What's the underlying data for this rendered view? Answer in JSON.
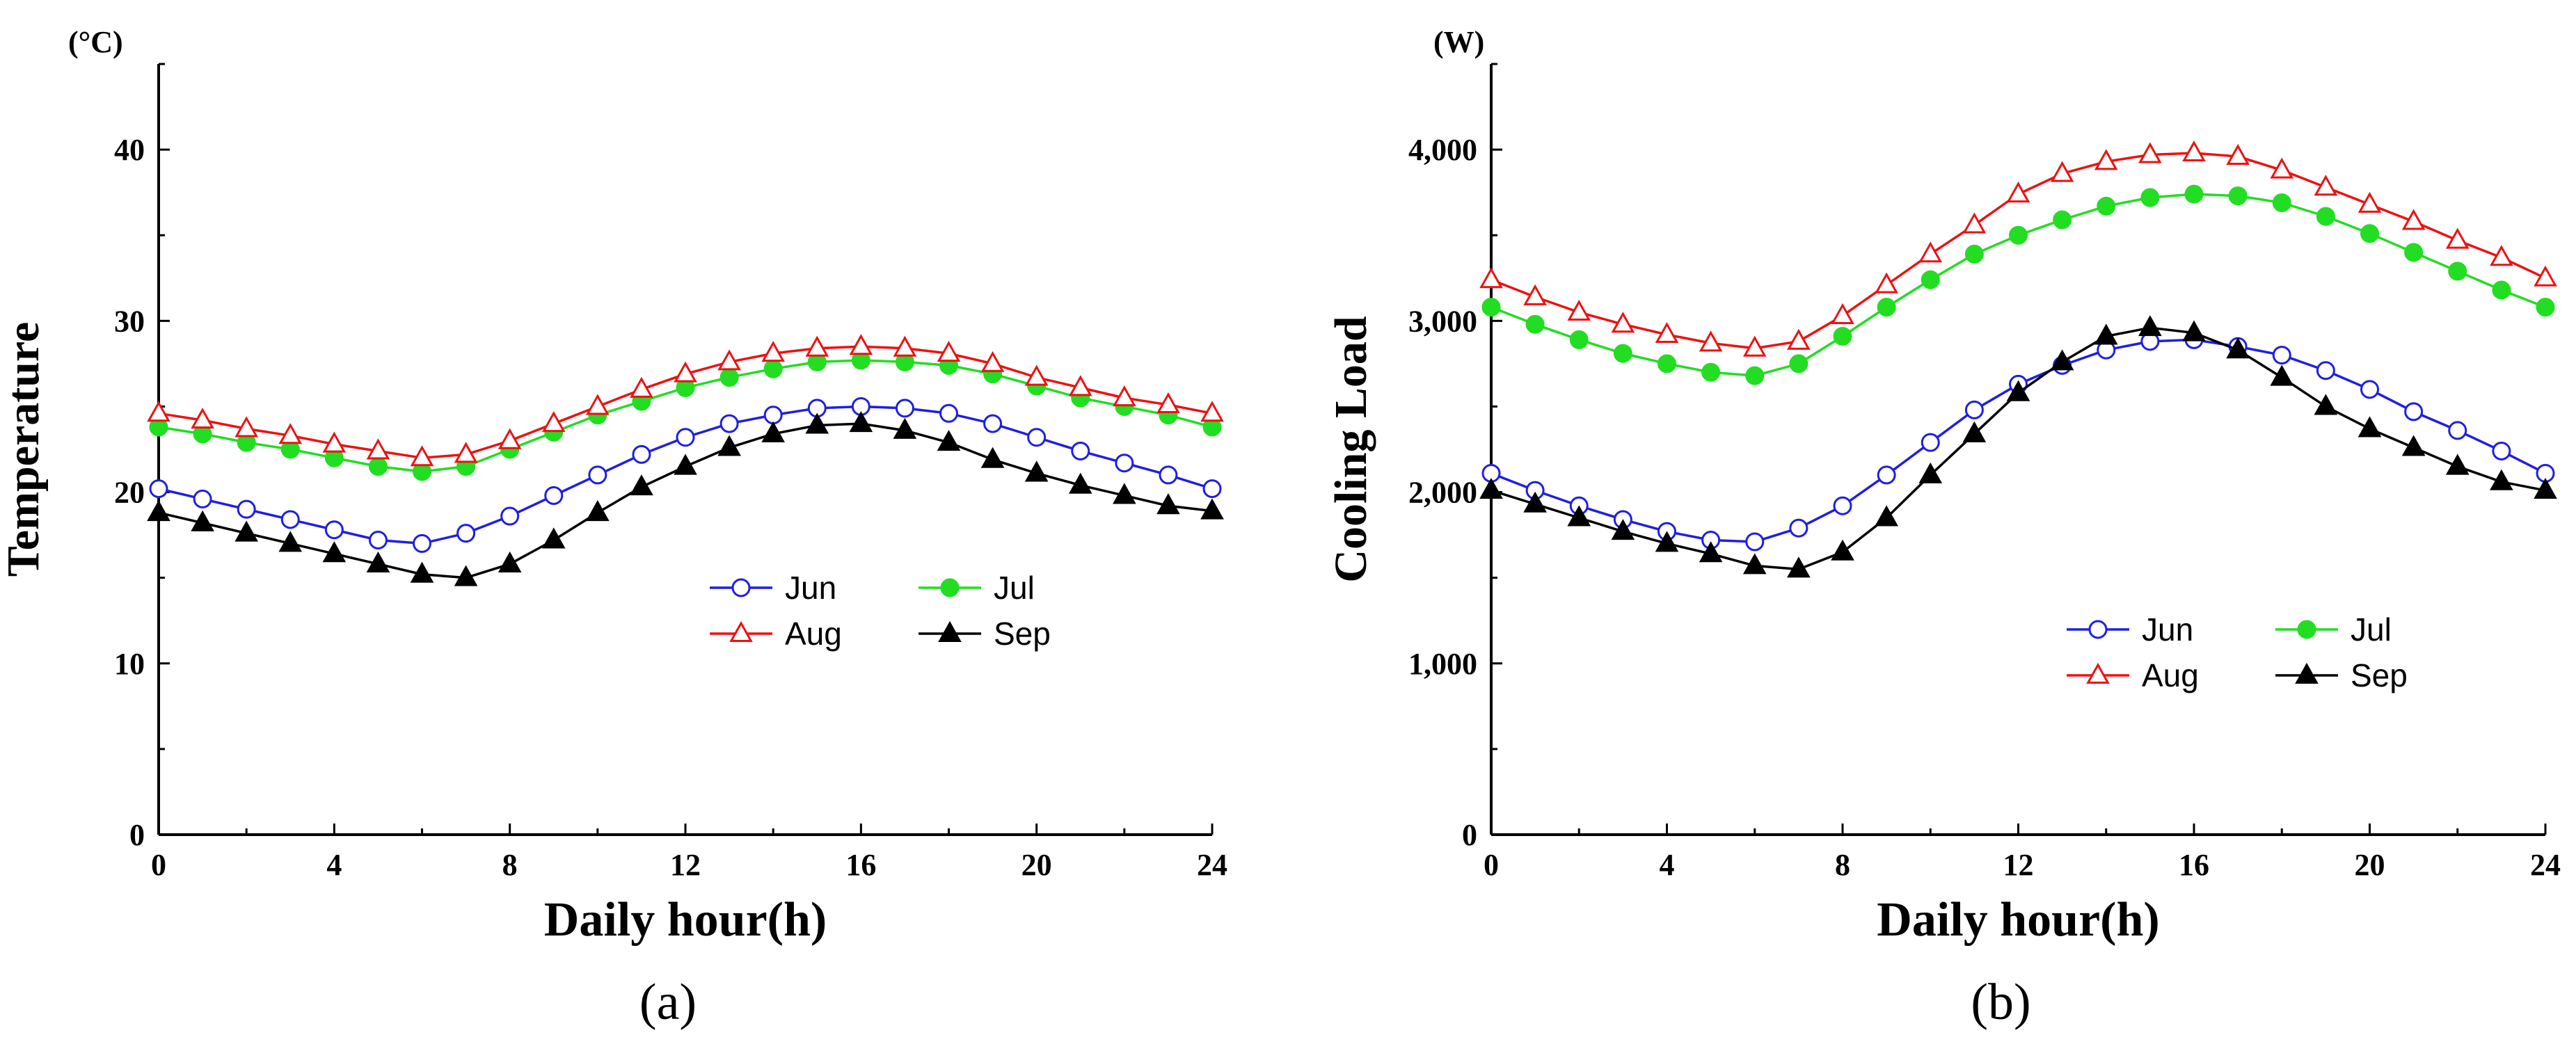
{
  "figure": {
    "panels": [
      {
        "panel_label": "(a)",
        "unit_label": "(°C)",
        "chart_data": {
          "type": "line",
          "title": "",
          "xlabel": "Daily hour(h)",
          "ylabel": "Temperature",
          "unit": "°C",
          "xlim": [
            0,
            24
          ],
          "ylim": [
            0,
            45
          ],
          "xticks": [
            0,
            4,
            8,
            12,
            16,
            20,
            24
          ],
          "xtick_labels": [
            "0",
            "4",
            "8",
            "12",
            "16",
            "20",
            "24"
          ],
          "yticks": [
            0,
            10,
            20,
            30,
            40
          ],
          "ytick_labels": [
            "0",
            "10",
            "20",
            "30",
            "40"
          ],
          "x": [
            0,
            1,
            2,
            3,
            4,
            5,
            6,
            7,
            8,
            9,
            10,
            11,
            12,
            13,
            14,
            15,
            16,
            17,
            18,
            19,
            20,
            21,
            22,
            23,
            24
          ],
          "legend_position": "center-right",
          "series": [
            {
              "name": "Jun",
              "color": "#1f1fe0",
              "marker": "circle-open",
              "values": [
                20.2,
                19.6,
                19.0,
                18.4,
                17.8,
                17.2,
                17.0,
                17.6,
                18.6,
                19.8,
                21.0,
                22.2,
                23.2,
                24.0,
                24.5,
                24.9,
                25.0,
                24.9,
                24.6,
                24.0,
                23.2,
                22.4,
                21.7,
                21.0,
                20.2
              ]
            },
            {
              "name": "Jul",
              "color": "#22dd22",
              "marker": "circle-filled",
              "values": [
                23.8,
                23.4,
                22.9,
                22.5,
                22.0,
                21.5,
                21.2,
                21.5,
                22.5,
                23.5,
                24.5,
                25.3,
                26.1,
                26.7,
                27.2,
                27.6,
                27.7,
                27.6,
                27.4,
                26.9,
                26.2,
                25.5,
                25.0,
                24.5,
                23.8
              ]
            },
            {
              "name": "Aug",
              "color": "#ee1111",
              "marker": "triangle-open",
              "values": [
                24.6,
                24.2,
                23.7,
                23.3,
                22.8,
                22.4,
                22.0,
                22.2,
                23.0,
                24.0,
                25.0,
                26.0,
                26.9,
                27.6,
                28.1,
                28.4,
                28.5,
                28.4,
                28.1,
                27.5,
                26.7,
                26.1,
                25.5,
                25.1,
                24.6
              ]
            },
            {
              "name": "Sep",
              "color": "#000000",
              "marker": "triangle-filled",
              "values": [
                18.8,
                18.2,
                17.6,
                17.0,
                16.4,
                15.8,
                15.2,
                15.0,
                15.8,
                17.2,
                18.8,
                20.3,
                21.5,
                22.6,
                23.4,
                23.9,
                24.0,
                23.6,
                22.9,
                21.9,
                21.1,
                20.4,
                19.8,
                19.2,
                18.9
              ]
            }
          ]
        }
      },
      {
        "panel_label": "(b)",
        "unit_label": "(W)",
        "chart_data": {
          "type": "line",
          "title": "",
          "xlabel": "Daily hour(h)",
          "ylabel": "Cooling Load",
          "unit": "W",
          "xlim": [
            0,
            24
          ],
          "ylim": [
            0,
            4500
          ],
          "xticks": [
            0,
            4,
            8,
            12,
            16,
            20,
            24
          ],
          "xtick_labels": [
            "0",
            "4",
            "8",
            "12",
            "16",
            "20",
            "24"
          ],
          "yticks": [
            0,
            1000,
            2000,
            3000,
            4000
          ],
          "ytick_labels": [
            "0",
            "1,000",
            "2,000",
            "3,000",
            "4,000"
          ],
          "x": [
            0,
            1,
            2,
            3,
            4,
            5,
            6,
            7,
            8,
            9,
            10,
            11,
            12,
            13,
            14,
            15,
            16,
            17,
            18,
            19,
            20,
            21,
            22,
            23,
            24
          ],
          "legend_position": "lower-right",
          "series": [
            {
              "name": "Jun",
              "color": "#1f1fe0",
              "marker": "circle-open",
              "values": [
                2110,
                2010,
                1920,
                1840,
                1770,
                1720,
                1710,
                1790,
                1920,
                2100,
                2290,
                2480,
                2630,
                2740,
                2830,
                2880,
                2890,
                2850,
                2800,
                2710,
                2600,
                2470,
                2360,
                2240,
                2110
              ]
            },
            {
              "name": "Jul",
              "color": "#22dd22",
              "marker": "circle-filled",
              "values": [
                3080,
                2980,
                2890,
                2810,
                2750,
                2700,
                2680,
                2750,
                2910,
                3080,
                3240,
                3390,
                3500,
                3590,
                3670,
                3720,
                3740,
                3730,
                3690,
                3610,
                3510,
                3400,
                3290,
                3180,
                3080
              ]
            },
            {
              "name": "Aug",
              "color": "#ee1111",
              "marker": "triangle-open",
              "values": [
                3240,
                3140,
                3050,
                2980,
                2920,
                2870,
                2840,
                2880,
                3030,
                3210,
                3390,
                3560,
                3740,
                3860,
                3930,
                3970,
                3980,
                3960,
                3880,
                3780,
                3680,
                3580,
                3470,
                3370,
                3250
              ]
            },
            {
              "name": "Sep",
              "color": "#000000",
              "marker": "triangle-filled",
              "values": [
                2010,
                1930,
                1850,
                1770,
                1700,
                1640,
                1570,
                1550,
                1650,
                1850,
                2100,
                2340,
                2580,
                2760,
                2910,
                2960,
                2930,
                2830,
                2670,
                2500,
                2370,
                2260,
                2150,
                2060,
                2010
              ]
            }
          ]
        }
      }
    ]
  }
}
